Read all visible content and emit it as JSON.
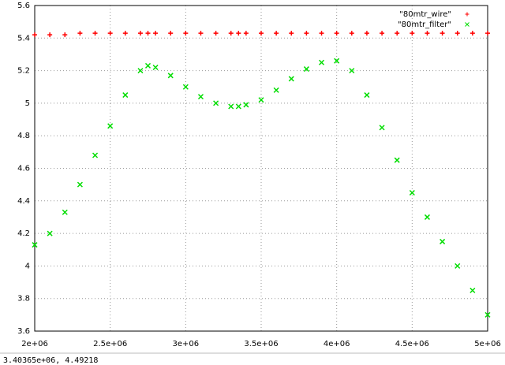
{
  "chart_data": {
    "type": "scatter",
    "x": [
      2000000,
      2100000,
      2200000,
      2300000,
      2400000,
      2500000,
      2600000,
      2700000,
      2750000,
      2800000,
      2900000,
      3000000,
      3100000,
      3200000,
      3300000,
      3350000,
      3400000,
      3500000,
      3600000,
      3700000,
      3800000,
      3900000,
      4000000,
      4100000,
      4200000,
      4300000,
      4400000,
      4500000,
      4600000,
      4700000,
      4800000,
      4900000,
      5000000
    ],
    "series": [
      {
        "name": "\"80mtr_wire\"",
        "color": "#ff0000",
        "marker": "plus",
        "values": [
          5.42,
          5.42,
          5.42,
          5.43,
          5.43,
          5.43,
          5.43,
          5.43,
          5.43,
          5.43,
          5.43,
          5.43,
          5.43,
          5.43,
          5.43,
          5.43,
          5.43,
          5.43,
          5.43,
          5.43,
          5.43,
          5.43,
          5.43,
          5.43,
          5.43,
          5.43,
          5.43,
          5.43,
          5.43,
          5.43,
          5.43,
          5.43,
          5.43
        ]
      },
      {
        "name": "\"80mtr_filter\"",
        "color": "#00dd00",
        "marker": "cross",
        "values": [
          4.13,
          4.2,
          4.33,
          4.5,
          4.68,
          4.86,
          5.05,
          5.2,
          5.23,
          5.22,
          5.17,
          5.1,
          5.04,
          5.0,
          4.98,
          4.98,
          4.99,
          5.02,
          5.08,
          5.15,
          5.21,
          5.25,
          5.26,
          5.2,
          5.05,
          4.85,
          4.65,
          4.45,
          4.3,
          4.15,
          4.0,
          3.85,
          3.7
        ]
      }
    ],
    "xlim": [
      2000000,
      5000000
    ],
    "ylim": [
      3.6,
      5.6
    ],
    "xticks": [
      {
        "value": 2000000,
        "label": "2e+06"
      },
      {
        "value": 2500000,
        "label": "2.5e+06"
      },
      {
        "value": 3000000,
        "label": "3e+06"
      },
      {
        "value": 3500000,
        "label": "3.5e+06"
      },
      {
        "value": 4000000,
        "label": "4e+06"
      },
      {
        "value": 4500000,
        "label": "4.5e+06"
      },
      {
        "value": 5000000,
        "label": "5e+06"
      }
    ],
    "yticks": [
      3.6,
      3.8,
      4,
      4.2,
      4.4,
      4.6,
      4.8,
      5,
      5.2,
      5.4,
      5.6
    ],
    "grid": true,
    "legend": "top-right"
  },
  "status_bar": "3.40365e+06,  4.49218"
}
